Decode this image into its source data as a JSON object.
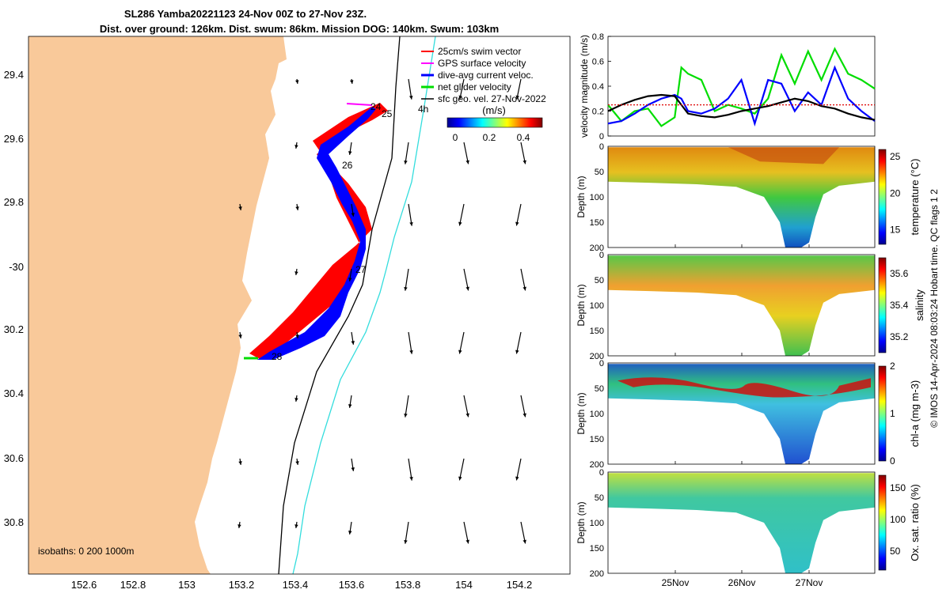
{
  "title": {
    "line1": "SL286 Yamba20221123 24-Nov 00Z to 27-Nov 23Z.",
    "line2": "Dist. over ground: 126km. Dist. swum: 86km. Mission DOG: 140km. Swum: 103km"
  },
  "map": {
    "lon_ticks": [
      "152.6",
      "152.8",
      "153",
      "153.2",
      "153.4",
      "153.6",
      "153.8",
      "154",
      "154.2"
    ],
    "lat_ticks": [
      "29.4",
      "29.6",
      "29.8",
      "-30",
      "30.2",
      "30.4",
      "30.6",
      "30.8"
    ],
    "isobaths_label": "isobaths: 0   200  1000m",
    "legend": [
      {
        "label": "25cm/s swim vector",
        "color": "#ff0000"
      },
      {
        "label": "GPS surface velocity",
        "color": "#ff00ff"
      },
      {
        "label": "dive-avg current veloc.",
        "color": "#0000ff"
      },
      {
        "label": "net glider velocity",
        "color": "#00dd00"
      },
      {
        "label": "sfc geo. vel. 27-Nov-2022",
        "color": "#000000"
      }
    ],
    "colorbar_title": "(m/s)",
    "colorbar_ticks": [
      "0",
      "0.2",
      "0.4"
    ],
    "day_labels": [
      "24",
      "25",
      "26",
      "27",
      "28"
    ],
    "extra_label": "4h",
    "colors": {
      "land": "#f9c99a",
      "track": "#0000ff",
      "swim": "#ff0000",
      "contour200": "#000000",
      "contour1000": "#33dddd"
    }
  },
  "side_note": "© IMOS 14-Apr-2024 08:03:24 Hobart time. QC flags 1  2",
  "panels": {
    "date_ticks": [
      "25Nov",
      "26Nov",
      "27Nov"
    ],
    "depth_label": "Depth (m)",
    "depth_ticks": [
      "0",
      "50",
      "100",
      "150",
      "200"
    ]
  },
  "chart_data": [
    {
      "type": "line",
      "title": "",
      "ylabel": "velocity magnitude (m/s)",
      "ylim": [
        0,
        0.8
      ],
      "yticks": [
        "0",
        "0.2",
        "0.4",
        "0.6",
        "0.8"
      ],
      "xlim": [
        24.0,
        28.0
      ],
      "x": [
        24.0,
        24.2,
        24.4,
        24.6,
        24.8,
        25.0,
        25.1,
        25.2,
        25.4,
        25.6,
        25.8,
        26.0,
        26.2,
        26.4,
        26.6,
        26.8,
        27.0,
        27.2,
        27.4,
        27.6,
        27.8,
        28.0
      ],
      "series": [
        {
          "name": "net glider velocity",
          "color": "#00dd00",
          "values": [
            0.25,
            0.12,
            0.2,
            0.22,
            0.08,
            0.15,
            0.55,
            0.5,
            0.45,
            0.2,
            0.25,
            0.22,
            0.18,
            0.3,
            0.65,
            0.42,
            0.68,
            0.45,
            0.7,
            0.5,
            0.45,
            0.38
          ]
        },
        {
          "name": "dive-avg current veloc.",
          "color": "#0000ff",
          "values": [
            0.1,
            0.12,
            0.18,
            0.25,
            0.3,
            0.33,
            0.3,
            0.2,
            0.18,
            0.22,
            0.3,
            0.45,
            0.1,
            0.45,
            0.42,
            0.2,
            0.35,
            0.25,
            0.55,
            0.3,
            0.2,
            0.12
          ]
        },
        {
          "name": "sfc geo. vel.",
          "color": "#000000",
          "values": [
            0.2,
            0.25,
            0.29,
            0.32,
            0.33,
            0.32,
            0.25,
            0.18,
            0.16,
            0.15,
            0.17,
            0.2,
            0.22,
            0.24,
            0.27,
            0.3,
            0.28,
            0.24,
            0.22,
            0.18,
            0.15,
            0.13
          ]
        },
        {
          "name": "25cm/s swim reference",
          "color": "#dd0000",
          "values": [
            0.25,
            0.25,
            0.25,
            0.25,
            0.25,
            0.25,
            0.25,
            0.25,
            0.25,
            0.25,
            0.25,
            0.25,
            0.25,
            0.25,
            0.25,
            0.25,
            0.25,
            0.25,
            0.25,
            0.25,
            0.25,
            0.25
          ]
        }
      ]
    },
    {
      "type": "heatmap",
      "name": "temperature",
      "colorbar_label": "temperature (°C)",
      "colorbar_ticks": [
        "15",
        "20",
        "25"
      ],
      "clim": [
        13,
        26
      ],
      "ylabel": "Depth (m)",
      "ylim": [
        200,
        0
      ]
    },
    {
      "type": "heatmap",
      "name": "salinity",
      "colorbar_label": "salinity",
      "colorbar_ticks": [
        "35.2",
        "35.4",
        "35.6"
      ],
      "clim": [
        35.1,
        35.7
      ],
      "ylabel": "Depth (m)",
      "ylim": [
        200,
        0
      ]
    },
    {
      "type": "heatmap",
      "name": "chl-a",
      "colorbar_label": "chl-a (mg m-3)",
      "colorbar_ticks": [
        "0",
        "1",
        "2"
      ],
      "clim": [
        0,
        2
      ],
      "ylabel": "Depth (m)",
      "ylim": [
        200,
        0
      ]
    },
    {
      "type": "heatmap",
      "name": "oxygen",
      "colorbar_label": "Ox. sat. ratio (%)",
      "colorbar_ticks": [
        "50",
        "100",
        "150"
      ],
      "clim": [
        20,
        170
      ],
      "ylabel": "Depth (m)",
      "ylim": [
        200,
        0
      ]
    }
  ]
}
